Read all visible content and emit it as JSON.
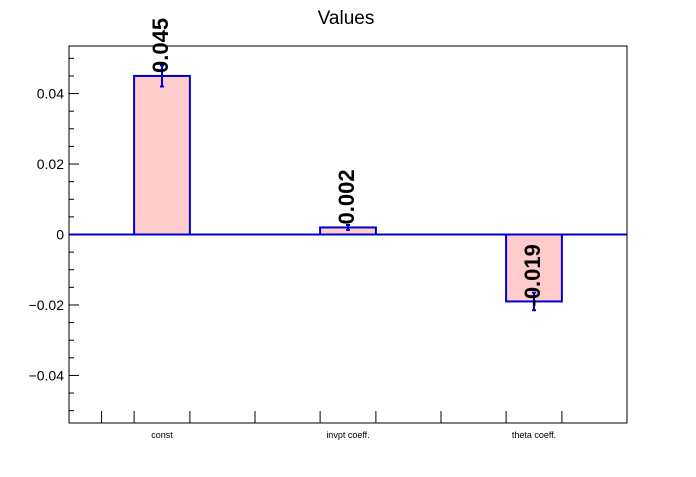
{
  "chart_data": {
    "type": "bar",
    "title": "Values",
    "xlabel": "",
    "ylabel": "",
    "categories": [
      "const",
      "invpt coeff.",
      "theta coeff."
    ],
    "values": [
      0.045,
      0.002,
      -0.019
    ],
    "errors": [
      0.003,
      0.0007,
      0.0025
    ],
    "value_labels": [
      "0.045",
      "0.002",
      "-0.019"
    ],
    "ylim": [
      -0.0535,
      0.0535
    ],
    "yticks": [
      {
        "value": 0.04,
        "label": "0.04"
      },
      {
        "value": 0.02,
        "label": "0.02"
      },
      {
        "value": 0,
        "label": "0"
      },
      {
        "value": -0.02,
        "label": "−0.02"
      },
      {
        "value": -0.04,
        "label": "−0.04"
      }
    ],
    "grid": false,
    "legend": "none",
    "colors": {
      "bar_fill": "#ffcccc",
      "bar_edge": "#0000cc",
      "zero_line": "#0000cc",
      "axes": "#000000",
      "text": "#000000"
    }
  }
}
